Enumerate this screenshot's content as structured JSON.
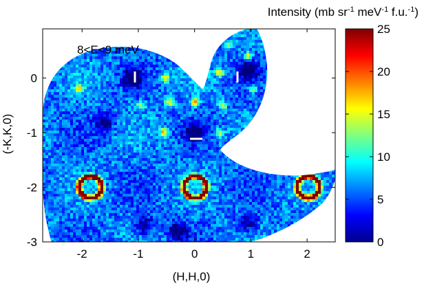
{
  "chart_data": {
    "type": "heatmap",
    "title": "",
    "annotation": "8<E<9 meV",
    "xlabel": "(H,H,0)",
    "ylabel": "(-K,K,0)",
    "xlim": [
      -2.7,
      2.5
    ],
    "ylim": [
      -3.0,
      0.9
    ],
    "x_ticks": [
      -2,
      -1,
      0,
      1,
      2
    ],
    "y_ticks": [
      0,
      -1,
      -2,
      -3
    ],
    "x_tick_labels": [
      "-2",
      "-1",
      "0",
      "1",
      "2"
    ],
    "y_tick_labels": [
      "0",
      "-1",
      "-2",
      "-3"
    ],
    "colorbar": {
      "label_parts": [
        "Intensity (mb sr",
        "-1",
        " meV",
        "-1",
        " f.u.",
        "-1",
        ")"
      ],
      "range": [
        0,
        25
      ],
      "ticks": [
        0,
        5,
        10,
        15,
        20,
        25
      ],
      "tick_labels": [
        "0",
        "5",
        "10",
        "15",
        "20",
        "25"
      ],
      "colormap": "jet"
    },
    "background_level": 6,
    "hotspots": [
      {
        "x": -1.98,
        "y": -2.0,
        "value": 23,
        "shape": "arc",
        "side": "left"
      },
      {
        "x": -1.72,
        "y": -2.0,
        "value": 23,
        "shape": "arc",
        "side": "right"
      },
      {
        "x": -0.12,
        "y": -2.0,
        "value": 20,
        "shape": "arc",
        "side": "left"
      },
      {
        "x": 0.14,
        "y": -2.0,
        "value": 20,
        "shape": "arc",
        "side": "right"
      },
      {
        "x": 1.88,
        "y": -2.02,
        "value": 20,
        "shape": "arc",
        "side": "left"
      },
      {
        "x": 2.16,
        "y": -1.98,
        "value": 22,
        "shape": "arc",
        "side": "right"
      },
      {
        "x": -2.05,
        "y": -0.2,
        "value": 17,
        "shape": "blob"
      },
      {
        "x": -0.52,
        "y": 0.0,
        "value": 18,
        "shape": "blob"
      },
      {
        "x": -0.45,
        "y": -0.45,
        "value": 17,
        "shape": "blob"
      },
      {
        "x": -0.55,
        "y": -1.0,
        "value": 19,
        "shape": "blob"
      },
      {
        "x": 0.0,
        "y": -0.45,
        "value": 18,
        "shape": "blob"
      },
      {
        "x": 0.5,
        "y": -0.5,
        "value": 16,
        "shape": "blob"
      },
      {
        "x": 0.45,
        "y": -1.0,
        "value": 15,
        "shape": "blob"
      },
      {
        "x": 0.45,
        "y": 0.1,
        "value": 17,
        "shape": "blob"
      },
      {
        "x": 0.95,
        "y": 0.4,
        "value": 16,
        "shape": "blob"
      },
      {
        "x": 0.6,
        "y": 0.6,
        "value": 15,
        "shape": "blob"
      },
      {
        "x": -0.95,
        "y": -0.5,
        "value": 14,
        "shape": "blob"
      },
      {
        "x": 1.05,
        "y": -0.2,
        "value": 14,
        "shape": "blob"
      }
    ],
    "cold_spots": [
      {
        "x": -1.1,
        "y": 0.0,
        "value": 0
      },
      {
        "x": 0.0,
        "y": -1.0,
        "value": 0
      },
      {
        "x": 0.95,
        "y": 0.15,
        "value": 0
      },
      {
        "x": -1.6,
        "y": -0.8,
        "value": 2
      },
      {
        "x": -0.9,
        "y": -2.7,
        "value": 1
      },
      {
        "x": 0.95,
        "y": -2.65,
        "value": 2
      },
      {
        "x": -0.3,
        "y": -2.8,
        "value": 1
      }
    ],
    "grid": false,
    "legend": "none"
  }
}
